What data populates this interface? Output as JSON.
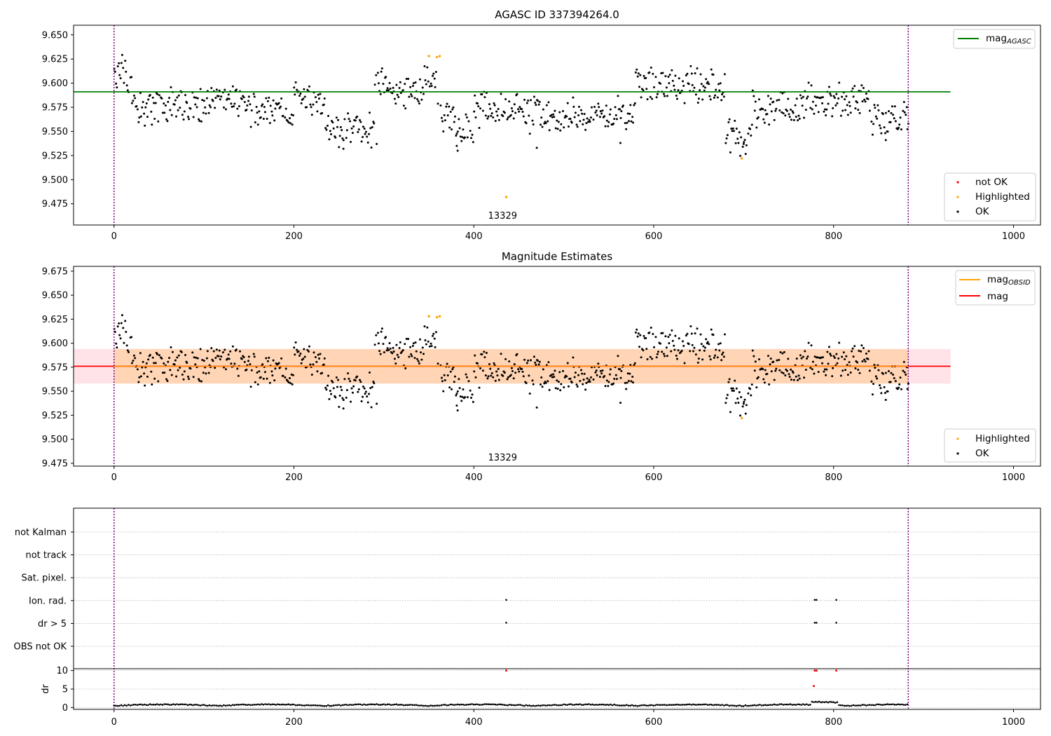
{
  "chart_data": [
    {
      "type": "scatter",
      "title": "AGASC ID 337394264.0",
      "xlim": [
        -45,
        1030
      ],
      "ylim": [
        9.453,
        9.66
      ],
      "xticks": [
        0,
        200,
        400,
        600,
        800,
        1000
      ],
      "yticks": [
        9.475,
        9.5,
        9.525,
        9.55,
        9.575,
        9.6,
        9.625,
        9.65
      ],
      "ytick_labels": [
        "9.475",
        "9.500",
        "9.525",
        "9.550",
        "9.575",
        "9.600",
        "9.625",
        "9.650"
      ],
      "obsid_label": "13329",
      "obsid_label_x": 432,
      "obs_boundaries": [
        0,
        883
      ],
      "mag_agasc": 9.591,
      "hline_extent": [
        -45,
        930
      ],
      "legend_upper": [
        {
          "label": "mag",
          "sub": "AGASC",
          "color": "#008000"
        }
      ],
      "legend_lower": [
        {
          "label": "not OK",
          "color": "#ff0000"
        },
        {
          "label": "Highlighted",
          "color": "#ffa500"
        },
        {
          "label": "OK",
          "color": "#000000"
        }
      ],
      "highlighted_points": [
        [
          350,
          9.628
        ],
        [
          359,
          9.627
        ],
        [
          362,
          9.628
        ],
        [
          436,
          9.482
        ],
        [
          698,
          9.522
        ]
      ]
    },
    {
      "type": "scatter",
      "title": "Magnitude Estimates",
      "xlim": [
        -45,
        1030
      ],
      "ylim": [
        9.472,
        9.68
      ],
      "xticks": [
        0,
        200,
        400,
        600,
        800,
        1000
      ],
      "yticks": [
        9.475,
        9.5,
        9.525,
        9.55,
        9.575,
        9.6,
        9.625,
        9.65,
        9.675
      ],
      "ytick_labels": [
        "9.475",
        "9.500",
        "9.525",
        "9.550",
        "9.575",
        "9.600",
        "9.625",
        "9.650",
        "9.675"
      ],
      "obsid_label": "13329",
      "obsid_label_x": 432,
      "obs_boundaries": [
        0,
        883
      ],
      "mag": 9.576,
      "mag_obsid": 9.576,
      "band": [
        9.558,
        9.594
      ],
      "hline_extent": [
        -45,
        930
      ],
      "legend_upper": [
        {
          "label": "mag",
          "sub": "OBSID",
          "color": "#ffa500"
        },
        {
          "label": "mag",
          "sub": "",
          "color": "#ff0000"
        }
      ],
      "legend_lower": [
        {
          "label": "Highlighted",
          "color": "#ffa500"
        },
        {
          "label": "OK",
          "color": "#000000"
        }
      ],
      "highlighted_points": [
        [
          350,
          9.628
        ],
        [
          359,
          9.627
        ],
        [
          362,
          9.628
        ],
        [
          698,
          9.522
        ]
      ]
    },
    {
      "type": "scatter",
      "title": "",
      "flag_labels": [
        "not Kalman",
        "not track",
        "Sat. pixel.",
        "Ion. rad.",
        "dr > 5",
        "OBS not OK"
      ],
      "flag_points": {
        "Ion. rad.": [
          436,
          779,
          781,
          803
        ],
        "dr > 5": [
          436,
          779,
          781,
          803
        ]
      },
      "ylabel": "dr",
      "dr_ylim": [
        -0.5,
        10.5
      ],
      "dr_yticks": [
        0,
        5,
        10
      ],
      "dr_ytick_labels": [
        "0",
        "5",
        "10"
      ],
      "xlim": [
        -45,
        1030
      ],
      "xticks": [
        0,
        200,
        400,
        600,
        800,
        1000
      ],
      "obs_boundaries": [
        0,
        883
      ],
      "dr_outliers": [
        [
          436,
          10
        ],
        [
          779,
          10
        ],
        [
          781,
          10
        ],
        [
          803,
          10
        ],
        [
          778,
          5.8
        ]
      ]
    }
  ]
}
